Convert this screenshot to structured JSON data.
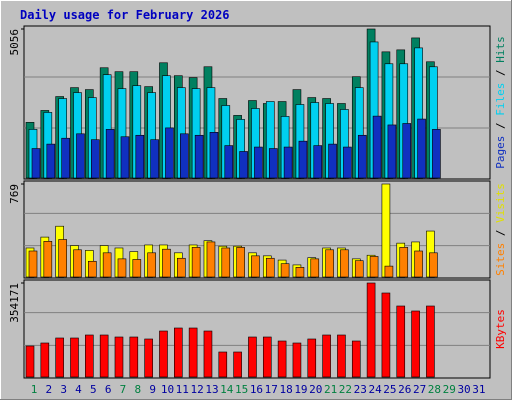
{
  "chart_data": [
    {
      "type": "bar",
      "title": "Daily usage for February 2026",
      "ylim": [
        0,
        5056
      ],
      "yticks": [
        5056
      ],
      "grid_lines": 3,
      "legend_separator": " / ",
      "series": [
        {
          "name": "Hits",
          "color": "#008060",
          "values": [
            1888,
            2292,
            2764,
            3067,
            3000,
            3741,
            3607,
            3607,
            3101,
            3910,
            3472,
            3405,
            3775,
            2697,
            2124,
            2629,
            2528,
            2595,
            3000,
            2730,
            2697,
            2528,
            3438,
            5056,
            4281,
            4348,
            4753,
            3944,
            null,
            null,
            null
          ]
        },
        {
          "name": "Files",
          "color": "#00d0f0",
          "values": [
            1651,
            2225,
            2696,
            2898,
            2730,
            3505,
            3033,
            3134,
            2898,
            3471,
            3067,
            3033,
            3067,
            2460,
            1988,
            2359,
            2595,
            2090,
            2494,
            2561,
            2528,
            2326,
            3067,
            4617,
            3876,
            3876,
            4415,
            3774,
            null,
            null,
            null
          ]
        },
        {
          "name": "Pages",
          "color": "#1030c0",
          "values": [
            1000,
            1150,
            1350,
            1500,
            1300,
            1650,
            1400,
            1450,
            1300,
            1700,
            1500,
            1450,
            1550,
            1100,
            900,
            1050,
            1000,
            1050,
            1250,
            1100,
            1150,
            1050,
            1450,
            2100,
            1800,
            1850,
            2000,
            1650,
            null,
            null,
            null
          ]
        }
      ]
    },
    {
      "type": "bar",
      "ylim": [
        0,
        769
      ],
      "yticks": [
        769
      ],
      "grid_lines": 3,
      "legend_separator": " / ",
      "series": [
        {
          "name": "Visits",
          "color": "#ffff00",
          "values": [
            240,
            330,
            420,
            260,
            220,
            260,
            240,
            210,
            265,
            265,
            200,
            265,
            300,
            255,
            255,
            200,
            175,
            140,
            100,
            160,
            240,
            240,
            150,
            180,
            769,
            280,
            290,
            380,
            null,
            null,
            null
          ]
        },
        {
          "name": "Sites",
          "color": "#ff8000",
          "values": [
            215,
            295,
            310,
            225,
            130,
            200,
            150,
            145,
            200,
            230,
            155,
            245,
            290,
            240,
            245,
            175,
            155,
            110,
            80,
            150,
            225,
            225,
            135,
            170,
            90,
            245,
            215,
            200,
            null,
            null,
            null
          ]
        }
      ]
    },
    {
      "type": "bar",
      "ylim": [
        0,
        354171
      ],
      "yticks": [
        354171
      ],
      "grid_lines": 3,
      "categories": [
        "1",
        "2",
        "3",
        "4",
        "5",
        "6",
        "7",
        "8",
        "9",
        "10",
        "11",
        "12",
        "13",
        "14",
        "15",
        "16",
        "17",
        "18",
        "19",
        "20",
        "21",
        "22",
        "23",
        "24",
        "25",
        "26",
        "27",
        "28",
        "29",
        "30",
        "31"
      ],
      "weekend_days": [
        1,
        7,
        8,
        14,
        15,
        21,
        22,
        28,
        29
      ],
      "weekend_color": "#008040",
      "weekday_color": "#0000a0",
      "series": [
        {
          "name": "KBytes",
          "color": "#ff0000",
          "values": [
            116800,
            128100,
            146950,
            146950,
            158250,
            158250,
            150700,
            150700,
            143200,
            173300,
            184600,
            184600,
            173300,
            94200,
            94200,
            150700,
            150700,
            135650,
            128100,
            143200,
            158250,
            158250,
            135650,
            354171,
            316500,
            267500,
            248700,
            267500,
            null,
            null,
            null
          ]
        }
      ]
    }
  ]
}
